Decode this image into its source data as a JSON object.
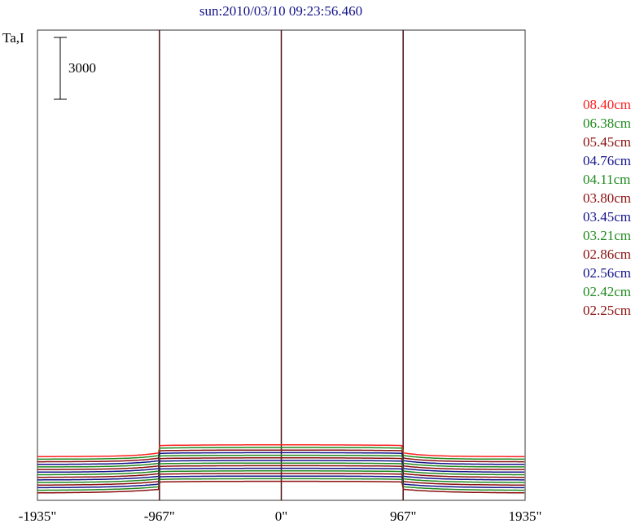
{
  "chart_data": {
    "type": "line",
    "title": "sun:2010/03/10 09:23:56.460",
    "ylabel": "Ta,I",
    "scale_bar_label": "3000",
    "scale_bar_value": 3000,
    "x_tick_labels": [
      "-1935\"",
      "-967\"",
      "0\"",
      "967\"",
      "1935\""
    ],
    "x_ticks": [
      -1935,
      -967,
      0,
      967,
      1935
    ],
    "xlim": [
      -1935,
      1935
    ],
    "vertical_lines": [
      -967,
      0,
      967
    ],
    "colors": {
      "red": "#ff2020",
      "green": "#1f8a1f",
      "darkred": "#8b0f0f",
      "blue": "#14148b",
      "frame": "#333333",
      "vline": "#4a1010"
    },
    "series": [
      {
        "name": "08.40cm",
        "color": "#ff2020",
        "baseline": 1800,
        "disk": 900,
        "limb": 20
      },
      {
        "name": "06.38cm",
        "color": "#1f8a1f",
        "baseline": 1600,
        "disk": 900,
        "limb": 25
      },
      {
        "name": "05.45cm",
        "color": "#8b0f0f",
        "baseline": 1400,
        "disk": 900,
        "limb": 30
      },
      {
        "name": "04.76cm",
        "color": "#14148b",
        "baseline": 1200,
        "disk": 900,
        "limb": 35
      },
      {
        "name": "04.11cm",
        "color": "#1f8a1f",
        "baseline": 1000,
        "disk": 900,
        "limb": 40
      },
      {
        "name": "03.80cm",
        "color": "#8b0f0f",
        "baseline": 800,
        "disk": 900,
        "limb": 45
      },
      {
        "name": "03.45cm",
        "color": "#14148b",
        "baseline": 600,
        "disk": 900,
        "limb": 50
      },
      {
        "name": "03.21cm",
        "color": "#1f8a1f",
        "baseline": 400,
        "disk": 900,
        "limb": 55
      },
      {
        "name": "02.86cm",
        "color": "#8b0f0f",
        "baseline": 200,
        "disk": 900,
        "limb": 60
      },
      {
        "name": "02.56cm",
        "color": "#14148b",
        "baseline": 0,
        "disk": 900,
        "limb": 65
      },
      {
        "name": "02.42cm",
        "color": "#1f8a1f",
        "baseline": -200,
        "disk": 900,
        "limb": 70
      },
      {
        "name": "02.25cm",
        "color": "#8b0f0f",
        "baseline": -400,
        "disk": 900,
        "limb": 75
      }
    ],
    "extra_series": [
      {
        "color": "#14148b",
        "baseline": -600,
        "disk": 900,
        "limb": 80
      },
      {
        "color": "#1f8a1f",
        "baseline": -800,
        "disk": 900,
        "limb": 85
      },
      {
        "color": "#8b0f0f",
        "baseline": -1000,
        "disk": 900,
        "limb": 90
      }
    ],
    "grid": false,
    "legend_placement": "right"
  }
}
